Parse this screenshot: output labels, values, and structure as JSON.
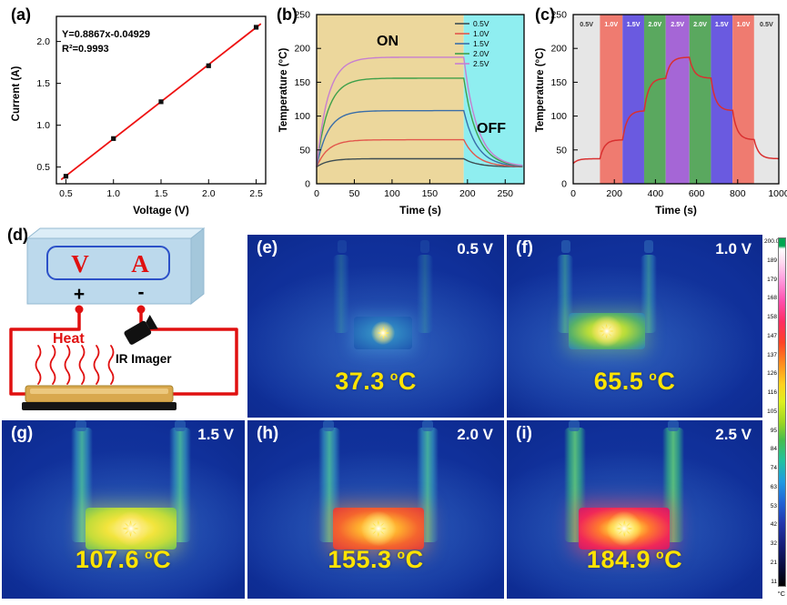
{
  "panel_letters": {
    "a": "(a)",
    "b": "(b)",
    "c": "(c)",
    "d": "(d)"
  },
  "panel_d": {
    "voltmeter": "V",
    "ammeter": "A",
    "plus": "+",
    "minus": "-",
    "heat": "Heat",
    "ir_imager": "IR Imager"
  },
  "thermal_common": {
    "deg": "o",
    "unit": "C"
  },
  "thermal_panels": [
    {
      "id": "e",
      "letter": "(e)",
      "voltage": "0.5 V",
      "temp": "37.3"
    },
    {
      "id": "f",
      "letter": "(f)",
      "voltage": "1.0 V",
      "temp": "65.5"
    },
    {
      "id": "g",
      "letter": "(g)",
      "voltage": "1.5 V",
      "temp": "107.6"
    },
    {
      "id": "h",
      "letter": "(h)",
      "voltage": "2.0 V",
      "temp": "155.3"
    },
    {
      "id": "i",
      "letter": "(i)",
      "voltage": "2.5 V",
      "temp": "184.9"
    }
  ],
  "colorbar": {
    "ticks": [
      "200.0",
      "189",
      "179",
      "168",
      "158",
      "147",
      "137",
      "126",
      "116",
      "105",
      "95",
      "84",
      "74",
      "63",
      "53",
      "42",
      "32",
      "21",
      "11"
    ],
    "unit": "°C"
  },
  "colors": {
    "thermal_background": "#10309a",
    "temperature_text": "#ffe400",
    "wire_red": "#e01010",
    "on_region": "#ecd79c",
    "off_region": "#8feef0"
  },
  "chart_data": [
    {
      "id": "a",
      "type": "scatter",
      "x": [
        0.5,
        1.0,
        1.5,
        2.0,
        2.5
      ],
      "y": [
        0.39,
        0.84,
        1.28,
        1.71,
        2.17
      ],
      "fit_slope": 0.8867,
      "fit_intercept": -0.04929,
      "fit_label": "Y=0.8867x-0.04929",
      "r2_label": "R²=0.9993",
      "xlabel": "Voltage (V)",
      "ylabel": "Current (A)",
      "xlim": [
        0.4,
        2.6
      ],
      "ylim": [
        0.3,
        2.3
      ],
      "xticks": [
        0.5,
        1.0,
        1.5,
        2.0,
        2.5
      ],
      "yticks": [
        0.5,
        1.0,
        1.5,
        2.0
      ],
      "line_color": "#ee1111",
      "marker_color": "#111111"
    },
    {
      "id": "b",
      "type": "line",
      "xlabel": "Time (s)",
      "ylabel": "Temperature (°C)",
      "xlim": [
        0,
        275
      ],
      "ylim": [
        0,
        250
      ],
      "xticks": [
        0,
        50,
        100,
        150,
        200,
        250
      ],
      "yticks": [
        0,
        50,
        100,
        150,
        200,
        250
      ],
      "ambient": 25,
      "tau_rise": 15,
      "tau_fall": 18,
      "on": {
        "label": "ON",
        "start": 0,
        "end": 195,
        "color": "#ecd79c"
      },
      "off": {
        "label": "OFF",
        "start": 195,
        "end": 275,
        "color": "#8feef0"
      },
      "series": [
        {
          "name": "0.5V",
          "plateau": 37,
          "color": "#3d4d52"
        },
        {
          "name": "1.0V",
          "plateau": 65,
          "color": "#e2574c"
        },
        {
          "name": "1.5V",
          "plateau": 108,
          "color": "#3a6ea8"
        },
        {
          "name": "2.0V",
          "plateau": 156,
          "color": "#3fa04a"
        },
        {
          "name": "2.5V",
          "plateau": 187,
          "color": "#c77fd0"
        }
      ]
    },
    {
      "id": "c",
      "type": "line",
      "xlabel": "Time (s)",
      "ylabel": "Temperature (°C)",
      "xlim": [
        0,
        1000
      ],
      "ylim": [
        0,
        250
      ],
      "xticks": [
        0,
        200,
        400,
        600,
        800,
        1000
      ],
      "yticks": [
        0,
        50,
        100,
        150,
        200,
        250
      ],
      "ambient": 30,
      "tau": 22,
      "line_color": "#d93030",
      "bands": [
        {
          "label": "0.5V",
          "start": 0,
          "end": 130,
          "color": "#e6e6e6",
          "text": "#333333",
          "target": 37
        },
        {
          "label": "1.0V",
          "start": 130,
          "end": 240,
          "color": "#ef7b70",
          "text": "#ffffff",
          "target": 65
        },
        {
          "label": "1.5V",
          "start": 240,
          "end": 345,
          "color": "#6a5ae0",
          "text": "#ffffff",
          "target": 108
        },
        {
          "label": "2.0V",
          "start": 345,
          "end": 450,
          "color": "#5aa85f",
          "text": "#ffffff",
          "target": 156
        },
        {
          "label": "2.5V",
          "start": 450,
          "end": 565,
          "color": "#a566d6",
          "text": "#ffffff",
          "target": 187
        },
        {
          "label": "2.0V",
          "start": 565,
          "end": 670,
          "color": "#5aa85f",
          "text": "#ffffff",
          "target": 156
        },
        {
          "label": "1.5V",
          "start": 670,
          "end": 775,
          "color": "#6a5ae0",
          "text": "#ffffff",
          "target": 108
        },
        {
          "label": "1.0V",
          "start": 775,
          "end": 880,
          "color": "#ef7b70",
          "text": "#ffffff",
          "target": 65
        },
        {
          "label": "0.5V",
          "start": 880,
          "end": 1000,
          "color": "#e6e6e6",
          "text": "#333333",
          "target": 37
        }
      ]
    }
  ]
}
